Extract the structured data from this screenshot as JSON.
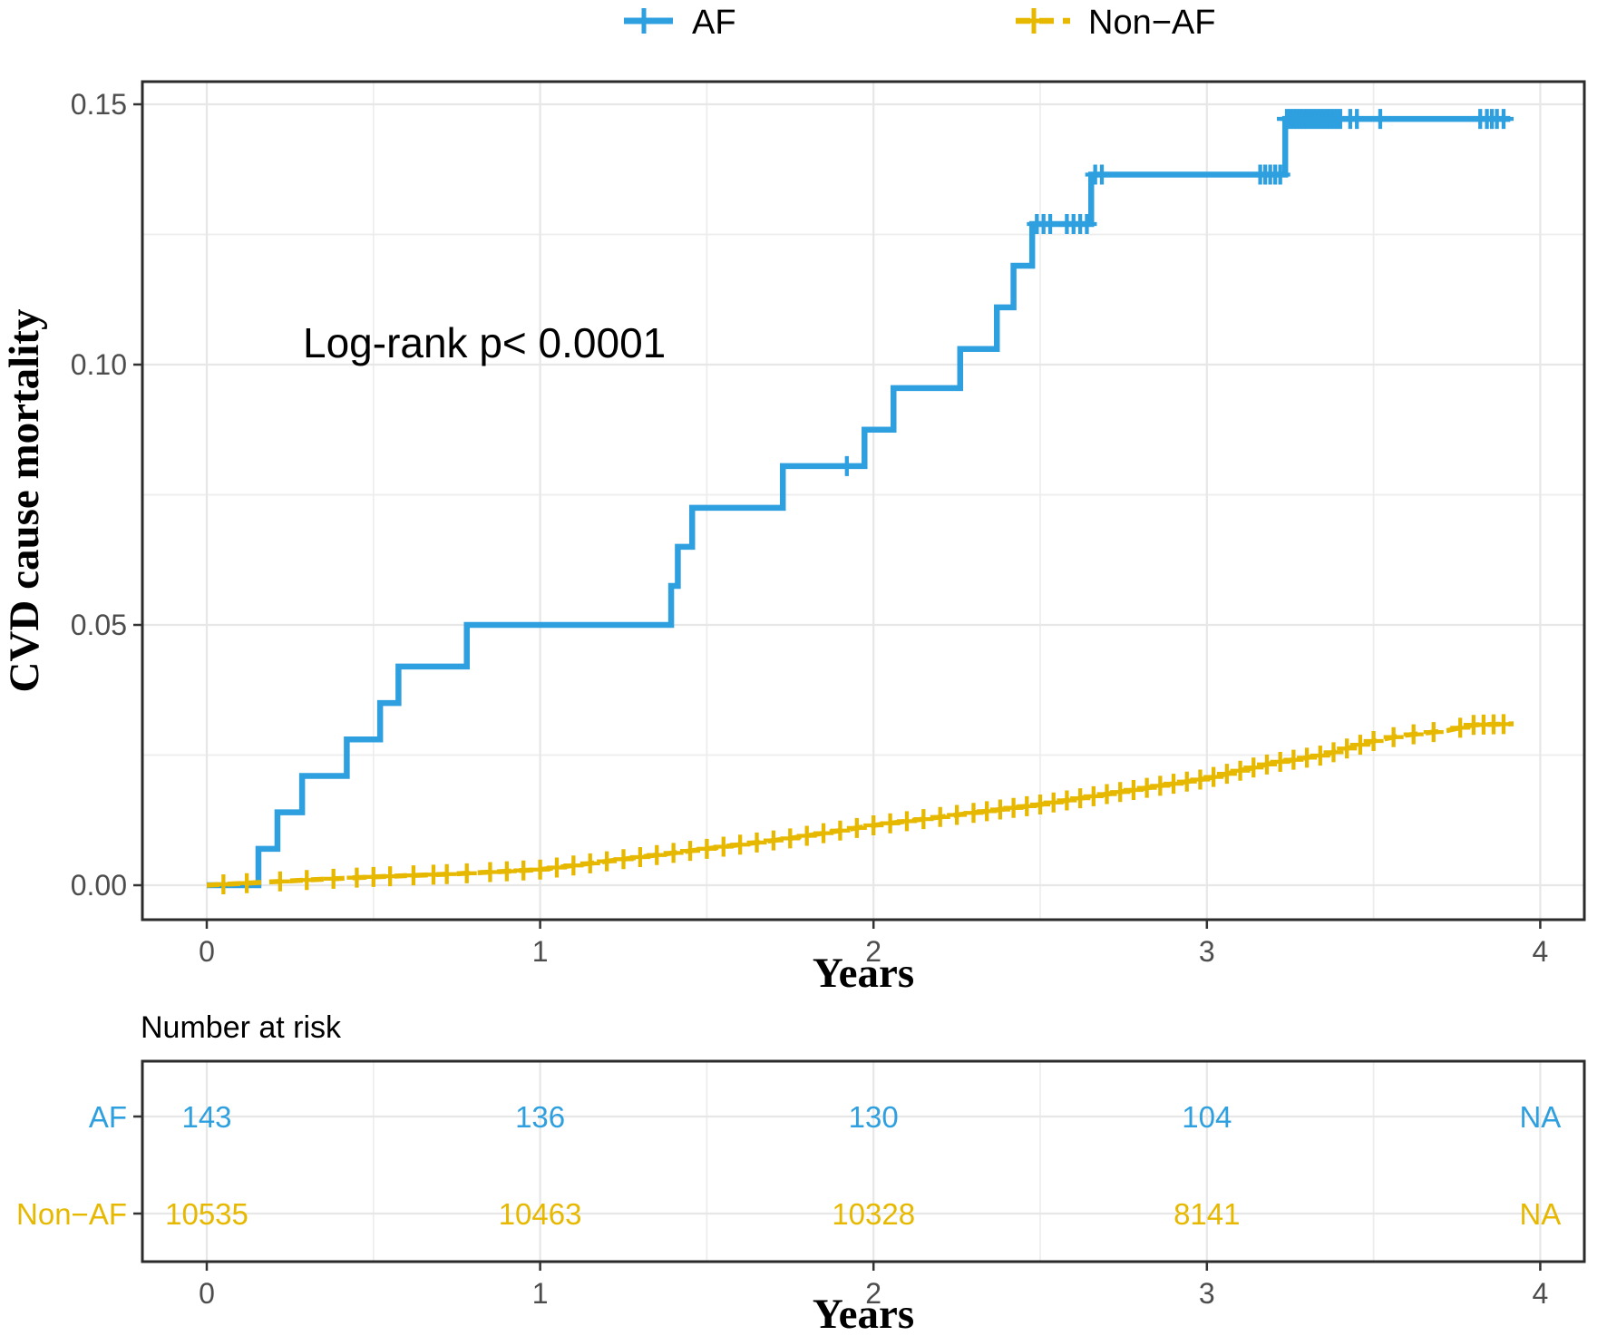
{
  "figure": {
    "legend": {
      "items": [
        {
          "label": "AF",
          "color": "#2E9FDF",
          "line_style": "solid"
        },
        {
          "label": "Non−AF",
          "color": "#E7B800",
          "line_style": "dashed"
        }
      ]
    },
    "annotation": "Log-rank p< 0.0001",
    "y_axis": {
      "title": "CVD cause mortality",
      "tick_labels": [
        "0.00",
        "0.05",
        "0.10",
        "0.15"
      ],
      "tick_values": [
        0,
        0.05,
        0.1,
        0.15
      ],
      "minor_values": [
        0.025,
        0.075,
        0.125
      ]
    },
    "x_axis": {
      "title": "Years",
      "tick_labels": [
        "0",
        "1",
        "2",
        "3",
        "4"
      ],
      "tick_values": [
        0,
        1,
        2,
        3,
        4
      ],
      "minor_values": [
        0.5,
        1.5,
        2.5,
        3.5
      ]
    },
    "risk_table": {
      "title": "Number at risk",
      "x_title": "Years",
      "times": [
        0,
        1,
        2,
        3,
        4
      ],
      "rows": [
        {
          "label": "AF",
          "color": "#2E9FDF",
          "values": [
            "143",
            "136",
            "130",
            "104",
            "NA"
          ]
        },
        {
          "label": "Non−AF",
          "color": "#E7B800",
          "values": [
            "10535",
            "10463",
            "10328",
            "8141",
            "NA"
          ]
        }
      ]
    },
    "colors": {
      "af": "#2E9FDF",
      "non_af": "#E7B800",
      "grid_major": "#e7e7e7",
      "grid_minor": "#ededed",
      "panel_border": "#2b2b2b",
      "tick_text": "#4d4d4d"
    }
  },
  "chart_data": {
    "type": "line",
    "subtype": "kaplan-meier-cumulative-incidence",
    "title": "",
    "xlabel": "Years",
    "ylabel": "CVD cause mortality",
    "xlim": [
      0,
      4
    ],
    "ylim": [
      0,
      0.15
    ],
    "grid": true,
    "legend_position": "top",
    "annotation": "Log-rank p< 0.0001",
    "series": [
      {
        "name": "AF",
        "color": "#2E9FDF",
        "style": "step-solid",
        "points": [
          [
            0,
            0
          ],
          [
            0.155,
            0.007
          ],
          [
            0.212,
            0.014
          ],
          [
            0.286,
            0.021
          ],
          [
            0.42,
            0.028
          ],
          [
            0.52,
            0.035
          ],
          [
            0.575,
            0.042
          ],
          [
            0.78,
            0.05
          ],
          [
            1.393,
            0.0575
          ],
          [
            1.413,
            0.065
          ],
          [
            1.456,
            0.0725
          ],
          [
            1.728,
            0.0805
          ],
          [
            1.973,
            0.0875
          ],
          [
            2.06,
            0.0955
          ],
          [
            2.26,
            0.103
          ],
          [
            2.37,
            0.111
          ],
          [
            2.42,
            0.119
          ],
          [
            2.476,
            0.127
          ],
          [
            2.653,
            0.1365
          ],
          [
            3.235,
            0.1472
          ],
          [
            3.91,
            0.1472
          ]
        ],
        "censor_times": [
          1.92,
          2.49,
          2.51,
          2.53,
          2.58,
          2.6,
          2.62,
          2.64,
          2.665,
          2.685,
          3.16,
          3.175,
          3.19,
          3.205,
          3.22,
          3.24,
          3.25,
          3.26,
          3.27,
          3.28,
          3.29,
          3.3,
          3.31,
          3.32,
          3.33,
          3.34,
          3.35,
          3.36,
          3.37,
          3.38,
          3.39,
          3.4,
          3.43,
          3.45,
          3.52,
          3.82,
          3.84,
          3.855,
          3.87,
          3.89
        ]
      },
      {
        "name": "Non−AF",
        "color": "#E7B800",
        "style": "line-dashed",
        "points": [
          [
            0,
            0
          ],
          [
            0.15,
            0.0005
          ],
          [
            0.3,
            0.001
          ],
          [
            0.5,
            0.0016
          ],
          [
            0.75,
            0.0022
          ],
          [
            1.0,
            0.003
          ],
          [
            1.25,
            0.005
          ],
          [
            1.5,
            0.007
          ],
          [
            1.75,
            0.009
          ],
          [
            2.0,
            0.0115
          ],
          [
            2.25,
            0.0135
          ],
          [
            2.5,
            0.0155
          ],
          [
            2.75,
            0.018
          ],
          [
            3.0,
            0.0205
          ],
          [
            3.2,
            0.0235
          ],
          [
            3.35,
            0.025
          ],
          [
            3.5,
            0.0277
          ],
          [
            3.58,
            0.0287
          ],
          [
            3.72,
            0.0297
          ],
          [
            3.8,
            0.0308
          ],
          [
            3.92,
            0.031
          ]
        ],
        "censor_times": [
          0.05,
          0.12,
          0.22,
          0.3,
          0.38,
          0.45,
          0.5,
          0.55,
          0.62,
          0.68,
          0.72,
          0.78,
          0.85,
          0.9,
          0.95,
          1.0,
          1.05,
          1.1,
          1.15,
          1.2,
          1.25,
          1.3,
          1.35,
          1.4,
          1.45,
          1.5,
          1.55,
          1.6,
          1.65,
          1.7,
          1.75,
          1.8,
          1.85,
          1.9,
          1.95,
          2.0,
          2.05,
          2.1,
          2.15,
          2.2,
          2.25,
          2.3,
          2.34,
          2.38,
          2.42,
          2.46,
          2.5,
          2.54,
          2.58,
          2.62,
          2.66,
          2.7,
          2.74,
          2.78,
          2.82,
          2.86,
          2.9,
          2.94,
          2.98,
          3.02,
          3.06,
          3.1,
          3.14,
          3.18,
          3.22,
          3.26,
          3.3,
          3.34,
          3.38,
          3.42,
          3.46,
          3.5,
          3.56,
          3.62,
          3.68,
          3.76,
          3.8,
          3.83,
          3.86,
          3.89
        ]
      }
    ],
    "number_at_risk": {
      "times": [
        0,
        1,
        2,
        3,
        4
      ],
      "AF": [
        143,
        136,
        130,
        104,
        null
      ],
      "Non-AF": [
        10535,
        10463,
        10328,
        8141,
        null
      ]
    }
  }
}
